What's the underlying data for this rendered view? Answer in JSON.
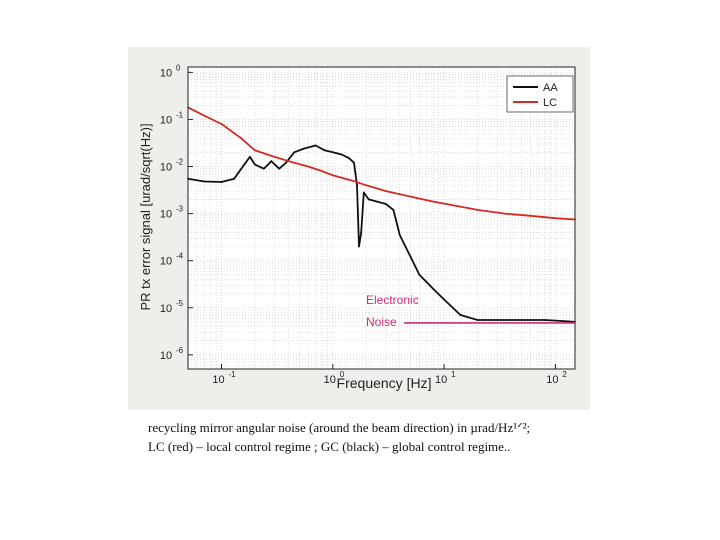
{
  "chart_data": {
    "type": "line",
    "xlabel": "Frequency [Hz]",
    "ylabel": "PR tx error signal [urad/sqrt(Hz)]",
    "x_scale": "log",
    "y_scale": "log",
    "xlim": [
      0.05,
      150
    ],
    "ylim": [
      5e-07,
      1.3
    ],
    "x_ticks": [
      {
        "value": 0.1,
        "base": "10",
        "exp": "-1"
      },
      {
        "value": 1,
        "base": "10",
        "exp": "0"
      },
      {
        "value": 10,
        "base": "10",
        "exp": "1"
      },
      {
        "value": 100,
        "base": "10",
        "exp": "2"
      }
    ],
    "y_ticks": [
      {
        "value": 1e-06,
        "base": "10",
        "exp": "-6"
      },
      {
        "value": 1e-05,
        "base": "10",
        "exp": "-5"
      },
      {
        "value": 0.0001,
        "base": "10",
        "exp": "-4"
      },
      {
        "value": 0.001,
        "base": "10",
        "exp": "-3"
      },
      {
        "value": 0.01,
        "base": "10",
        "exp": "-2"
      },
      {
        "value": 0.1,
        "base": "10",
        "exp": "-1"
      },
      {
        "value": 1,
        "base": "10",
        "exp": "0"
      }
    ],
    "grid": true,
    "legend_position": "top-right",
    "series": [
      {
        "name": "AA",
        "color": "#111111",
        "points": [
          [
            0.05,
            0.0055
          ],
          [
            0.07,
            0.0048
          ],
          [
            0.1,
            0.0047
          ],
          [
            0.13,
            0.0055
          ],
          [
            0.16,
            0.011
          ],
          [
            0.18,
            0.016
          ],
          [
            0.2,
            0.011
          ],
          [
            0.24,
            0.009
          ],
          [
            0.28,
            0.013
          ],
          [
            0.33,
            0.009
          ],
          [
            0.38,
            0.012
          ],
          [
            0.45,
            0.02
          ],
          [
            0.55,
            0.024
          ],
          [
            0.7,
            0.028
          ],
          [
            0.85,
            0.022
          ],
          [
            1.0,
            0.02
          ],
          [
            1.2,
            0.018
          ],
          [
            1.4,
            0.015
          ],
          [
            1.55,
            0.012
          ],
          [
            1.65,
            0.004
          ],
          [
            1.72,
            0.0002
          ],
          [
            1.8,
            0.0004
          ],
          [
            1.9,
            0.0028
          ],
          [
            2.1,
            0.002
          ],
          [
            2.5,
            0.0018
          ],
          [
            3.0,
            0.0016
          ],
          [
            3.5,
            0.0012
          ],
          [
            4.0,
            0.00035
          ],
          [
            5.0,
            0.00012
          ],
          [
            6.0,
            5e-05
          ],
          [
            8.0,
            2.5e-05
          ],
          [
            10,
            1.5e-05
          ],
          [
            14,
            7e-06
          ],
          [
            20,
            5.5e-06
          ],
          [
            30,
            5.5e-06
          ],
          [
            50,
            5.5e-06
          ],
          [
            80,
            5.5e-06
          ],
          [
            120,
            5.2e-06
          ],
          [
            150,
            5e-06
          ]
        ]
      },
      {
        "name": "LC",
        "color": "#d42a22",
        "points": [
          [
            0.05,
            0.18
          ],
          [
            0.07,
            0.12
          ],
          [
            0.1,
            0.08
          ],
          [
            0.15,
            0.04
          ],
          [
            0.2,
            0.022
          ],
          [
            0.3,
            0.016
          ],
          [
            0.45,
            0.012
          ],
          [
            0.6,
            0.01
          ],
          [
            0.8,
            0.008
          ],
          [
            1.0,
            0.0065
          ],
          [
            1.5,
            0.005
          ],
          [
            2,
            0.004
          ],
          [
            3,
            0.003
          ],
          [
            5,
            0.0023
          ],
          [
            8,
            0.0018
          ],
          [
            12,
            0.0015
          ],
          [
            20,
            0.0012
          ],
          [
            35,
            0.001
          ],
          [
            60,
            0.0009
          ],
          [
            100,
            0.0008
          ],
          [
            150,
            0.00075
          ]
        ]
      }
    ],
    "annotations": [
      {
        "line1": "Electronic",
        "line2": "Noise",
        "color": "#cc2e7a",
        "noise_level": 5e-06,
        "x_start": 10,
        "x_end": 150
      }
    ]
  },
  "caption": {
    "line1": "recycling mirror angular noise (around the beam direction) in µrad/Hz¹ᐟ²;",
    "line2": "LC (red) – local control regime ; GC (black) – global control regime.."
  }
}
